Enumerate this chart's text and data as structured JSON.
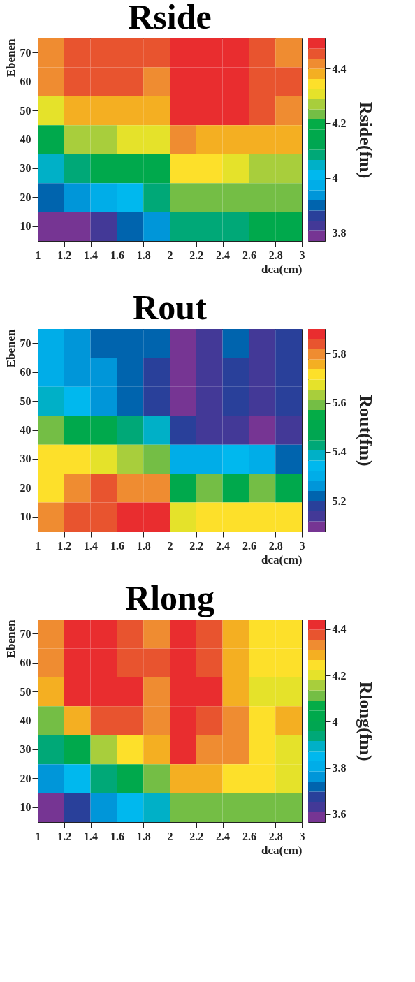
{
  "chart_data": [
    {
      "type": "heatmap",
      "title": "Rside",
      "xlabel": "dca(cm)",
      "ylabel": "Ebenen",
      "clabel": "Rside(fm)",
      "x": [
        1.1,
        1.3,
        1.5,
        1.7,
        1.9,
        2.1,
        2.3,
        2.5,
        2.7,
        2.9
      ],
      "y_categories": [
        "70",
        "60",
        "50",
        "40",
        "30",
        "20",
        "10"
      ],
      "xlim": [
        1,
        3
      ],
      "xticks": [
        1,
        1.2,
        1.4,
        1.6,
        1.8,
        2,
        2.2,
        2.4,
        2.6,
        2.8,
        3
      ],
      "clim": [
        3.77,
        4.51
      ],
      "cticks": [
        3.8,
        4,
        4.2,
        4.4
      ],
      "cells": [
        [
          4.42,
          4.45,
          4.45,
          4.45,
          4.45,
          4.49,
          4.49,
          4.49,
          4.45,
          4.42
        ],
        [
          4.42,
          4.45,
          4.45,
          4.45,
          4.42,
          4.49,
          4.49,
          4.49,
          4.45,
          4.45
        ],
        [
          4.31,
          4.38,
          4.38,
          4.38,
          4.38,
          4.49,
          4.49,
          4.49,
          4.45,
          4.42
        ],
        [
          4.16,
          4.27,
          4.27,
          4.31,
          4.31,
          4.42,
          4.38,
          4.38,
          4.38,
          4.38
        ],
        [
          4.05,
          4.08,
          4.16,
          4.16,
          4.16,
          4.34,
          4.34,
          4.31,
          4.27,
          4.27
        ],
        [
          3.9,
          3.94,
          3.97,
          4.01,
          4.08,
          4.23,
          4.23,
          4.23,
          4.23,
          4.23
        ],
        [
          3.79,
          3.79,
          3.83,
          3.9,
          3.94,
          4.08,
          4.08,
          4.08,
          4.16,
          4.16
        ]
      ]
    },
    {
      "type": "heatmap",
      "title": "Rout",
      "xlabel": "dca(cm)",
      "ylabel": "Ebenen",
      "clabel": "Rout(fm)",
      "x": [
        1.1,
        1.3,
        1.5,
        1.7,
        1.9,
        2.1,
        2.3,
        2.5,
        2.7,
        2.9
      ],
      "y_categories": [
        "70",
        "60",
        "50",
        "40",
        "30",
        "20",
        "10"
      ],
      "xlim": [
        1,
        3
      ],
      "xticks": [
        1,
        1.2,
        1.4,
        1.6,
        1.8,
        2,
        2.2,
        2.4,
        2.6,
        2.8,
        3
      ],
      "clim": [
        5.075,
        5.901
      ],
      "cticks": [
        5.2,
        5.4,
        5.6,
        5.8
      ],
      "cells": [
        [
          5.3,
          5.26,
          5.22,
          5.22,
          5.22,
          5.1,
          5.14,
          5.22,
          5.14,
          5.18
        ],
        [
          5.3,
          5.26,
          5.26,
          5.22,
          5.18,
          5.1,
          5.14,
          5.18,
          5.14,
          5.18
        ],
        [
          5.38,
          5.34,
          5.26,
          5.22,
          5.18,
          5.1,
          5.14,
          5.18,
          5.14,
          5.18
        ],
        [
          5.59,
          5.51,
          5.51,
          5.43,
          5.38,
          5.18,
          5.14,
          5.14,
          5.1,
          5.14
        ],
        [
          5.72,
          5.72,
          5.67,
          5.63,
          5.59,
          5.3,
          5.3,
          5.34,
          5.3,
          5.22
        ],
        [
          5.72,
          5.8,
          5.84,
          5.8,
          5.8,
          5.51,
          5.59,
          5.51,
          5.59,
          5.51
        ],
        [
          5.8,
          5.84,
          5.84,
          5.88,
          5.88,
          5.67,
          5.72,
          5.72,
          5.72,
          5.72
        ]
      ]
    },
    {
      "type": "heatmap",
      "title": "Rlong",
      "xlabel": "dca(cm)",
      "ylabel": "Ebenen",
      "clabel": "Rlong(fm)",
      "x": [
        1.1,
        1.3,
        1.5,
        1.7,
        1.9,
        2.1,
        2.3,
        2.5,
        2.7,
        2.9
      ],
      "y_categories": [
        "70",
        "60",
        "50",
        "40",
        "30",
        "20",
        "10"
      ],
      "xlim": [
        1,
        3
      ],
      "xticks": [
        1,
        1.2,
        1.4,
        1.6,
        1.8,
        2,
        2.2,
        2.4,
        2.6,
        2.8,
        3
      ],
      "clim": [
        3.566,
        4.442
      ],
      "cticks": [
        3.6,
        3.8,
        4,
        4.2,
        4.4
      ],
      "cells": [
        [
          4.33,
          4.42,
          4.42,
          4.38,
          4.33,
          4.42,
          4.38,
          4.29,
          4.24,
          4.24
        ],
        [
          4.33,
          4.42,
          4.42,
          4.38,
          4.38,
          4.42,
          4.38,
          4.29,
          4.24,
          4.24
        ],
        [
          4.29,
          4.42,
          4.42,
          4.42,
          4.33,
          4.42,
          4.42,
          4.29,
          4.2,
          4.2
        ],
        [
          4.11,
          4.29,
          4.38,
          4.38,
          4.33,
          4.42,
          4.38,
          4.33,
          4.24,
          4.29
        ],
        [
          3.94,
          4.03,
          4.16,
          4.24,
          4.29,
          4.42,
          4.33,
          4.33,
          4.24,
          4.2
        ],
        [
          3.76,
          3.85,
          3.94,
          4.03,
          4.11,
          4.29,
          4.29,
          4.24,
          4.24,
          4.2
        ],
        [
          3.59,
          3.68,
          3.76,
          3.85,
          3.89,
          4.11,
          4.11,
          4.11,
          4.11,
          4.11
        ]
      ]
    }
  ]
}
